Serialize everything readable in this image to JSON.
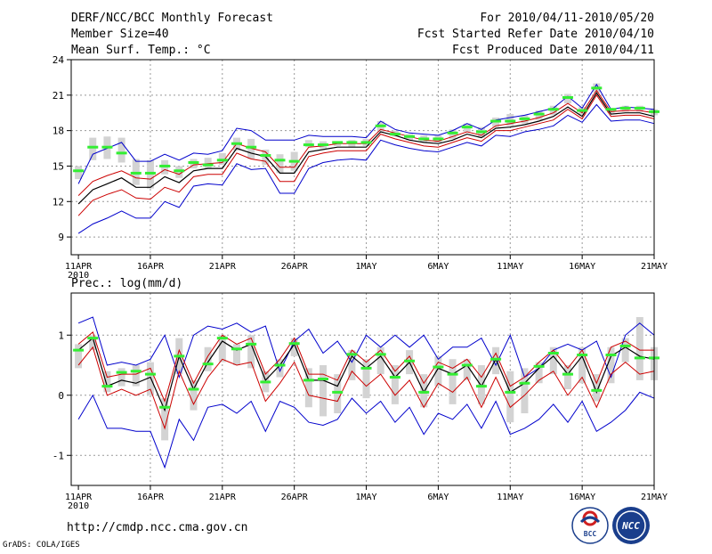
{
  "header": {
    "title": "DERF/NCC/BCC Monthly Forecast",
    "member_size": "Member Size=40",
    "variable": "Mean Surf. Temp.: °C",
    "period": "For 2010/04/11-2010/05/20",
    "started": "Fcst Started Refer Date 2010/04/10",
    "produced": "Fcst Produced Date 2010/04/11"
  },
  "footer": {
    "url": "http://cmdp.ncc.cma.gov.cn",
    "credit": "GrADS: COLA/IGES",
    "logo_bcc": "BCC",
    "logo_ncc": "NCC"
  },
  "colors": {
    "mean": "#000000",
    "spread": "#cc0000",
    "extreme": "#0000cc",
    "box": "#d3d3d3",
    "median": "#33ee33"
  },
  "chart_data": [
    {
      "type": "line",
      "title": "Mean Surf. Temp.: °C",
      "x_tick_labels": [
        "11APR",
        "16APR",
        "21APR",
        "26APR",
        "1MAY",
        "6MAY",
        "11MAY",
        "16MAY",
        "21MAY"
      ],
      "x_tick_days": [
        0,
        5,
        10,
        15,
        20,
        25,
        30,
        35,
        40
      ],
      "x_sublabel": "2010",
      "xlim": [
        -0.5,
        40
      ],
      "ylim": [
        7.5,
        24
      ],
      "y_ticks": [
        9,
        12,
        15,
        18,
        21,
        24
      ],
      "y_tick_labels": [
        "9",
        "12",
        "15",
        "18",
        "21",
        "24"
      ],
      "series": [
        {
          "name": "max",
          "values": [
            9.3,
            10.1,
            10.6,
            11.2,
            10.6,
            10.6,
            12.0,
            11.5,
            13.3,
            13.5,
            13.4,
            15.2,
            14.7,
            14.8,
            12.7,
            12.7,
            14.8,
            15.3,
            15.5,
            15.6,
            15.5,
            17.2,
            16.8,
            16.5,
            16.3,
            16.2,
            16.6,
            17.0,
            16.7,
            17.6,
            17.5,
            17.9,
            18.1,
            18.4,
            19.3,
            18.7,
            20.2,
            18.8,
            18.9,
            18.9,
            18.6
          ]
        },
        {
          "name": "mean_minus_sd",
          "values": [
            10.8,
            12.1,
            12.6,
            13.0,
            12.3,
            12.2,
            13.2,
            12.8,
            14.1,
            14.3,
            14.3,
            16.1,
            15.6,
            15.4,
            13.7,
            13.7,
            15.8,
            16.1,
            16.3,
            16.3,
            16.3,
            17.7,
            17.3,
            17.0,
            16.7,
            16.6,
            17.0,
            17.4,
            17.1,
            18.0,
            18.0,
            18.3,
            18.6,
            18.9,
            19.8,
            19.0,
            21.0,
            19.2,
            19.3,
            19.3,
            19.0
          ]
        },
        {
          "name": "mean",
          "values": [
            11.8,
            13.0,
            13.5,
            14.0,
            13.2,
            13.2,
            14.1,
            13.6,
            14.6,
            14.8,
            14.8,
            16.5,
            16.1,
            15.8,
            14.4,
            14.4,
            16.2,
            16.4,
            16.6,
            16.6,
            16.6,
            17.9,
            17.6,
            17.2,
            17.0,
            16.9,
            17.2,
            17.7,
            17.4,
            18.2,
            18.3,
            18.5,
            18.8,
            19.2,
            20.0,
            19.2,
            21.2,
            19.4,
            19.5,
            19.5,
            19.2
          ]
        },
        {
          "name": "mean_plus_sd",
          "values": [
            12.5,
            13.7,
            14.2,
            14.6,
            14.0,
            13.9,
            14.7,
            14.3,
            15.1,
            15.2,
            15.3,
            16.9,
            16.5,
            16.2,
            14.9,
            14.9,
            16.6,
            16.7,
            16.9,
            16.9,
            16.9,
            18.1,
            17.8,
            17.5,
            17.2,
            17.1,
            17.5,
            17.9,
            17.6,
            18.4,
            18.6,
            18.8,
            19.1,
            19.5,
            20.3,
            19.5,
            21.4,
            19.6,
            19.7,
            19.7,
            19.5
          ]
        },
        {
          "name": "min",
          "values": [
            13.5,
            16.0,
            16.5,
            17.0,
            15.4,
            15.4,
            16.0,
            15.5,
            16.1,
            16.0,
            16.3,
            18.2,
            18.0,
            17.2,
            17.2,
            17.2,
            17.6,
            17.5,
            17.5,
            17.5,
            17.4,
            18.8,
            18.1,
            17.8,
            17.7,
            17.6,
            18.0,
            18.6,
            18.1,
            18.9,
            19.1,
            19.3,
            19.6,
            19.9,
            20.9,
            19.9,
            21.9,
            19.8,
            20.0,
            19.9,
            19.8
          ]
        }
      ],
      "boxes": {
        "low": [
          13.9,
          15.5,
          15.6,
          15.3,
          13.4,
          13.1,
          14.3,
          14.0,
          14.8,
          14.8,
          15.1,
          16.3,
          15.6,
          15.1,
          14.4,
          14.6,
          16.6,
          16.5,
          16.7,
          16.6,
          16.7,
          17.9,
          17.5,
          17.2,
          17.0,
          17.0,
          17.3,
          17.9,
          17.4,
          18.3,
          18.4,
          18.6,
          18.9,
          19.3,
          20.3,
          19.3,
          21.2,
          19.5,
          19.6,
          19.6,
          19.3
        ],
        "high": [
          15.0,
          17.4,
          17.5,
          17.4,
          15.6,
          15.5,
          15.5,
          15.0,
          15.6,
          15.7,
          16.1,
          17.4,
          17.3,
          16.4,
          16.0,
          16.2,
          17.2,
          17.1,
          17.1,
          17.2,
          17.3,
          18.8,
          18.0,
          17.7,
          17.6,
          17.6,
          18.1,
          18.6,
          18.3,
          19.1,
          19.4,
          19.3,
          19.7,
          20.1,
          21.1,
          20.0,
          22.0,
          19.9,
          20.1,
          20.1,
          19.8
        ],
        "median": [
          14.6,
          16.6,
          16.6,
          16.1,
          14.4,
          14.4,
          15.0,
          14.6,
          15.3,
          15.1,
          15.5,
          16.9,
          16.6,
          15.9,
          15.5,
          15.4,
          16.8,
          16.8,
          17.0,
          17.0,
          17.0,
          18.4,
          17.7,
          17.5,
          17.3,
          17.3,
          17.8,
          18.3,
          17.9,
          18.8,
          18.8,
          19.0,
          19.4,
          19.8,
          20.8,
          19.7,
          21.6,
          19.8,
          19.9,
          19.9,
          19.6
        ]
      }
    },
    {
      "type": "line",
      "title": "Prec.: log(mm/d)",
      "x_tick_labels": [
        "11APR",
        "16APR",
        "21APR",
        "26APR",
        "1MAY",
        "6MAY",
        "11MAY",
        "16MAY",
        "21MAY"
      ],
      "x_tick_days": [
        0,
        5,
        10,
        15,
        20,
        25,
        30,
        35,
        40
      ],
      "x_sublabel": "2010",
      "xlim": [
        -0.5,
        40
      ],
      "ylim": [
        -1.5,
        1.7
      ],
      "y_ticks": [
        -1,
        0,
        1
      ],
      "y_tick_labels": [
        "-1",
        "0",
        "1"
      ],
      "series": [
        {
          "name": "max",
          "values": [
            1.2,
            1.3,
            0.5,
            0.55,
            0.5,
            0.6,
            1.0,
            0.3,
            1.0,
            1.15,
            1.1,
            1.2,
            1.05,
            1.15,
            0.4,
            0.9,
            1.1,
            0.7,
            0.9,
            0.55,
            1.0,
            0.8,
            1.0,
            0.8,
            1.0,
            0.6,
            0.8,
            0.8,
            0.95,
            0.5,
            1.0,
            0.3,
            0.45,
            0.75,
            0.85,
            0.75,
            0.9,
            0.3,
            1.0,
            1.2,
            1.0
          ]
        },
        {
          "name": "mean_plus_sd",
          "values": [
            0.85,
            1.05,
            0.3,
            0.35,
            0.35,
            0.45,
            -0.1,
            0.75,
            0.2,
            0.65,
            1.0,
            0.85,
            0.95,
            0.35,
            0.6,
            0.95,
            0.35,
            0.35,
            0.25,
            0.75,
            0.55,
            0.75,
            0.4,
            0.65,
            0.2,
            0.55,
            0.45,
            0.6,
            0.3,
            0.7,
            0.15,
            0.3,
            0.55,
            0.75,
            0.45,
            0.75,
            0.2,
            0.8,
            0.9,
            0.75,
            0.75
          ]
        },
        {
          "name": "mean",
          "values": [
            0.75,
            0.95,
            0.15,
            0.25,
            0.2,
            0.3,
            -0.25,
            0.65,
            0.1,
            0.55,
            0.9,
            0.75,
            0.85,
            0.25,
            0.5,
            0.85,
            0.25,
            0.25,
            0.15,
            0.65,
            0.45,
            0.65,
            0.3,
            0.55,
            0.05,
            0.45,
            0.35,
            0.5,
            0.15,
            0.6,
            0.05,
            0.2,
            0.45,
            0.65,
            0.35,
            0.65,
            0.05,
            0.65,
            0.8,
            0.65,
            0.6
          ]
        },
        {
          "name": "mean_minus_sd",
          "values": [
            0.5,
            0.8,
            0.0,
            0.1,
            0.0,
            0.1,
            -0.55,
            0.4,
            -0.15,
            0.3,
            0.6,
            0.5,
            0.55,
            -0.1,
            0.2,
            0.55,
            0.0,
            -0.05,
            -0.1,
            0.4,
            0.15,
            0.35,
            0.0,
            0.25,
            -0.2,
            0.2,
            0.05,
            0.3,
            -0.2,
            0.3,
            -0.2,
            0.0,
            0.25,
            0.4,
            0.0,
            0.3,
            -0.2,
            0.35,
            0.55,
            0.35,
            0.4
          ]
        },
        {
          "name": "min",
          "values": [
            -0.4,
            0.0,
            -0.55,
            -0.55,
            -0.6,
            -0.6,
            -1.2,
            -0.4,
            -0.75,
            -0.2,
            -0.15,
            -0.3,
            -0.1,
            -0.6,
            -0.1,
            -0.2,
            -0.45,
            -0.5,
            -0.4,
            -0.05,
            -0.3,
            -0.1,
            -0.45,
            -0.2,
            -0.65,
            -0.3,
            -0.4,
            -0.15,
            -0.55,
            -0.1,
            -0.65,
            -0.55,
            -0.4,
            -0.15,
            -0.45,
            -0.1,
            -0.6,
            -0.45,
            -0.25,
            0.05,
            -0.05
          ]
        }
      ],
      "boxes": {
        "low": [
          0.45,
          0.75,
          0.05,
          0.15,
          0.15,
          0.0,
          -0.75,
          0.35,
          -0.25,
          0.4,
          0.55,
          0.5,
          0.45,
          0.05,
          0.3,
          0.65,
          -0.2,
          -0.35,
          -0.3,
          0.25,
          -0.05,
          0.35,
          -0.15,
          0.35,
          -0.2,
          0.15,
          -0.15,
          0.25,
          -0.15,
          0.35,
          -0.45,
          -0.3,
          0.2,
          0.35,
          0.1,
          0.2,
          -0.1,
          0.2,
          0.55,
          0.25,
          0.25
        ],
        "high": [
          0.85,
          1.0,
          0.4,
          0.45,
          0.5,
          0.55,
          -0.05,
          0.95,
          0.25,
          0.8,
          1.0,
          0.85,
          1.0,
          0.4,
          0.6,
          0.95,
          0.45,
          0.5,
          0.35,
          0.75,
          0.6,
          0.8,
          0.5,
          0.75,
          0.35,
          0.65,
          0.6,
          0.6,
          0.5,
          0.8,
          0.4,
          0.45,
          0.55,
          0.8,
          0.5,
          0.8,
          0.35,
          0.8,
          0.95,
          1.3,
          0.8
        ],
        "median": [
          0.75,
          0.95,
          0.15,
          0.38,
          0.4,
          0.35,
          -0.2,
          0.65,
          0.1,
          0.52,
          0.95,
          0.77,
          0.85,
          0.22,
          0.5,
          0.86,
          0.25,
          0.27,
          0.05,
          0.68,
          0.45,
          0.68,
          0.3,
          0.57,
          0.05,
          0.47,
          0.35,
          0.5,
          0.15,
          0.6,
          0.05,
          0.2,
          0.48,
          0.7,
          0.35,
          0.67,
          0.08,
          0.67,
          0.82,
          0.62,
          0.62
        ]
      }
    }
  ]
}
